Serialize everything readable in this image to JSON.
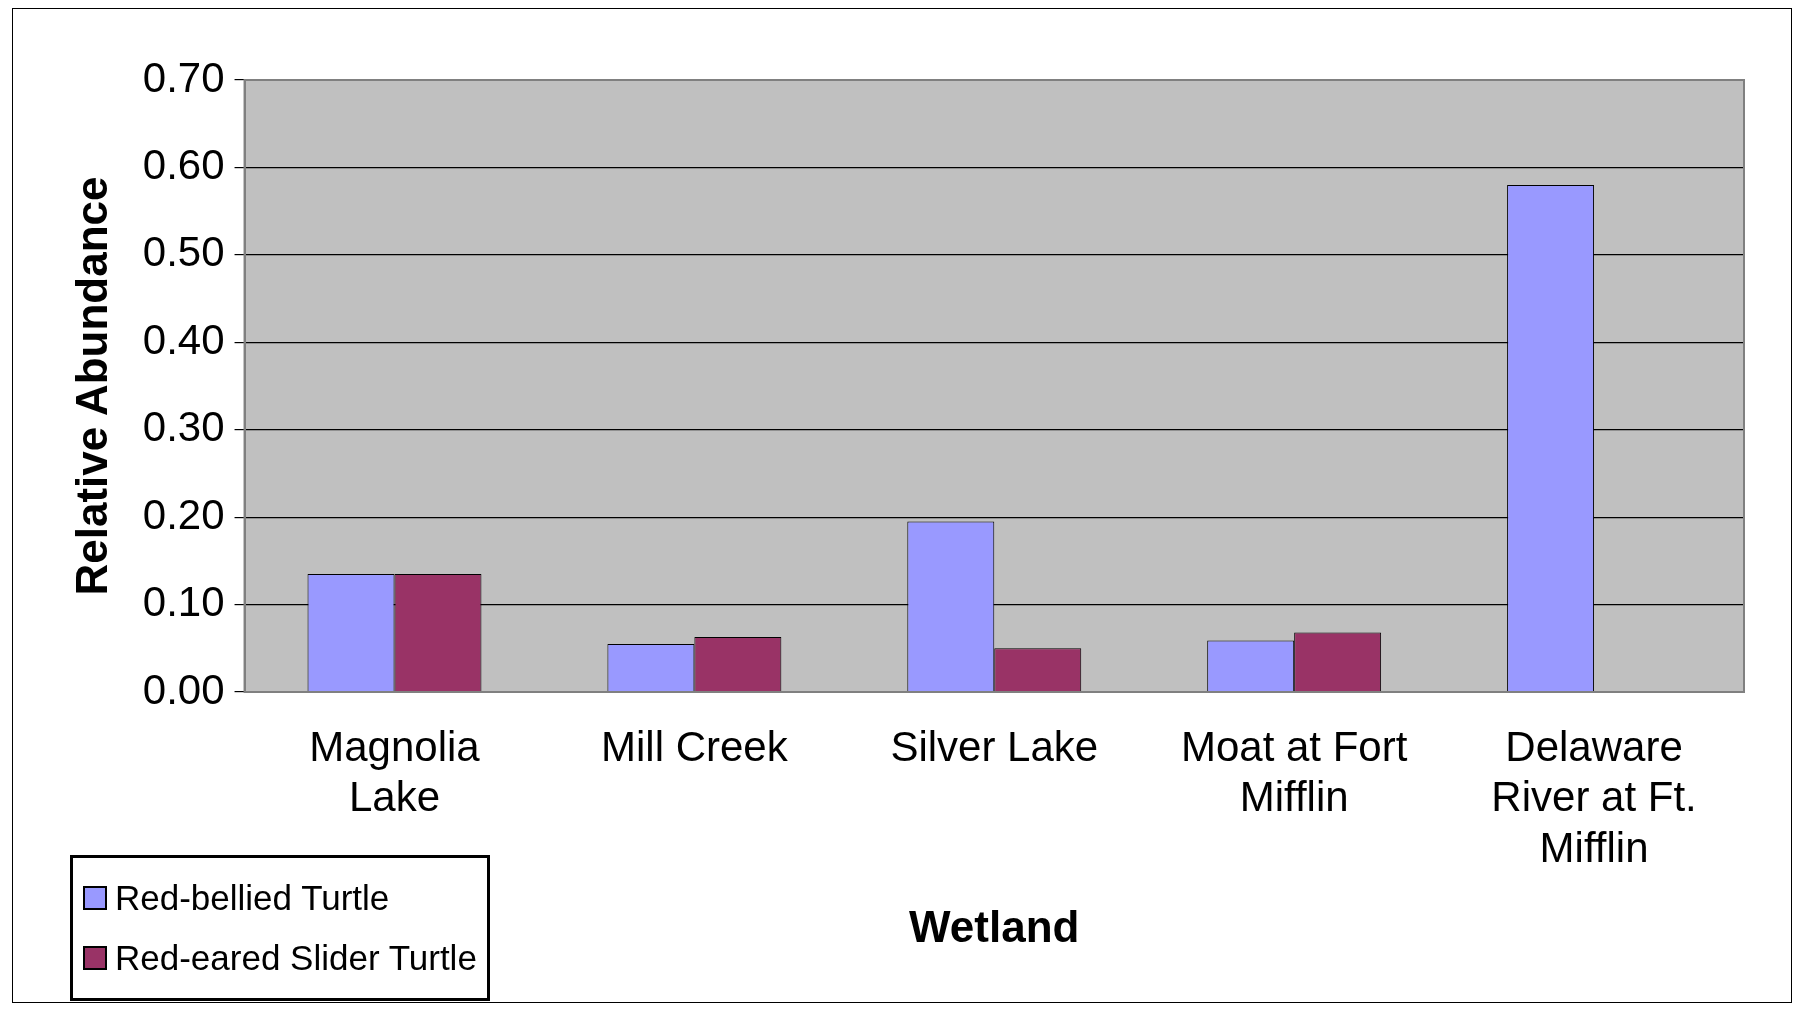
{
  "chart_data": {
    "type": "bar",
    "xlabel": "Wetland",
    "ylabel": "Relative Abundance",
    "categories": [
      "Magnolia Lake",
      "Mill Creek",
      "Silver Lake",
      "Moat at Fort Mifflin",
      "Delaware River at Ft. Mifflin"
    ],
    "series": [
      {
        "name": "Red-bellied Turtle",
        "color": "#9999ff",
        "values": [
          0.135,
          0.055,
          0.195,
          0.059,
          0.58
        ]
      },
      {
        "name": "Red-eared Slider Turtle",
        "color": "#993366",
        "values": [
          0.135,
          0.063,
          0.05,
          0.068,
          0
        ]
      }
    ],
    "ylim": [
      0,
      0.7
    ],
    "yticks": [
      {
        "value": 0,
        "label": "0.00"
      },
      {
        "value": 0.1,
        "label": "0.10"
      },
      {
        "value": 0.2,
        "label": "0.20"
      },
      {
        "value": 0.3,
        "label": "0.30"
      },
      {
        "value": 0.4,
        "label": "0.40"
      },
      {
        "value": 0.5,
        "label": "0.50"
      },
      {
        "value": 0.6,
        "label": "0.60"
      },
      {
        "value": 0.7,
        "label": "0.70"
      }
    ],
    "grid": "y",
    "legend": "bottom left"
  }
}
